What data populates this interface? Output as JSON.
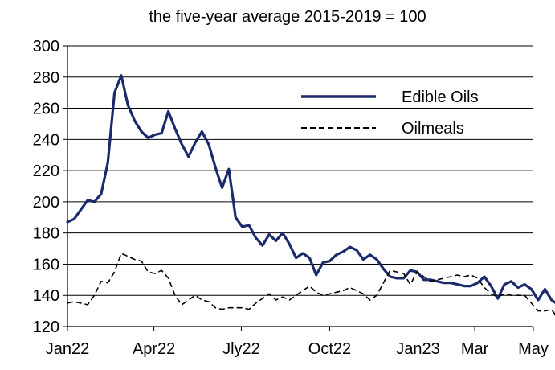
{
  "chart_data": {
    "type": "line",
    "title": "the five-year average 2015-2019 = 100",
    "xlabel": "",
    "ylabel": "",
    "ylim": [
      120,
      300
    ],
    "y_ticks": [
      120,
      140,
      160,
      180,
      200,
      220,
      240,
      260,
      280,
      300
    ],
    "x_range": [
      "2022-01",
      "2023-05"
    ],
    "x_ticks": [
      {
        "label": "Jan22",
        "date": "2022-01"
      },
      {
        "label": "Apr22",
        "date": "2022-04"
      },
      {
        "label": "Jly22",
        "date": "2022-07"
      },
      {
        "label": "Oct22",
        "date": "2022-10"
      },
      {
        "label": "Jan23",
        "date": "2023-01"
      },
      {
        "label": "Mar",
        "date": "2023-03"
      },
      {
        "label": "May",
        "date": "2023-05"
      }
    ],
    "grid": "horizontal",
    "legend_position": "top-right",
    "series": [
      {
        "name": "Edible Oils",
        "color": "#1b2a6b",
        "style": "solid",
        "points": [
          [
            "2022-01-01",
            187
          ],
          [
            "2022-01-08",
            189
          ],
          [
            "2022-01-15",
            195
          ],
          [
            "2022-01-22",
            201
          ],
          [
            "2022-01-29",
            200
          ],
          [
            "2022-02-05",
            205
          ],
          [
            "2022-02-12",
            225
          ],
          [
            "2022-02-19",
            270
          ],
          [
            "2022-02-26",
            281
          ],
          [
            "2022-03-05",
            262
          ],
          [
            "2022-03-12",
            252
          ],
          [
            "2022-03-19",
            245
          ],
          [
            "2022-03-26",
            241
          ],
          [
            "2022-04-02",
            243
          ],
          [
            "2022-04-09",
            244
          ],
          [
            "2022-04-16",
            258
          ],
          [
            "2022-04-23",
            247
          ],
          [
            "2022-04-30",
            237
          ],
          [
            "2022-05-07",
            229
          ],
          [
            "2022-05-14",
            238
          ],
          [
            "2022-05-21",
            245
          ],
          [
            "2022-05-28",
            237
          ],
          [
            "2022-06-04",
            222
          ],
          [
            "2022-06-11",
            209
          ],
          [
            "2022-06-18",
            221
          ],
          [
            "2022-06-25",
            190
          ],
          [
            "2022-07-02",
            184
          ],
          [
            "2022-07-09",
            185
          ],
          [
            "2022-07-16",
            177
          ],
          [
            "2022-07-23",
            172
          ],
          [
            "2022-07-30",
            179
          ],
          [
            "2022-08-06",
            175
          ],
          [
            "2022-08-13",
            180
          ],
          [
            "2022-08-20",
            173
          ],
          [
            "2022-08-27",
            164
          ],
          [
            "2022-09-03",
            167
          ],
          [
            "2022-09-10",
            164
          ],
          [
            "2022-09-17",
            153
          ],
          [
            "2022-09-24",
            161
          ],
          [
            "2022-10-01",
            162
          ],
          [
            "2022-10-08",
            166
          ],
          [
            "2022-10-15",
            168
          ],
          [
            "2022-10-22",
            171
          ],
          [
            "2022-10-29",
            169
          ],
          [
            "2022-11-05",
            163
          ],
          [
            "2022-11-12",
            166
          ],
          [
            "2022-11-19",
            163
          ],
          [
            "2022-11-26",
            157
          ],
          [
            "2022-12-03",
            152
          ],
          [
            "2022-12-10",
            151
          ],
          [
            "2022-12-17",
            151
          ],
          [
            "2022-12-24",
            156
          ],
          [
            "2022-12-31",
            155
          ],
          [
            "2023-01-07",
            150
          ],
          [
            "2023-01-14",
            150
          ],
          [
            "2023-01-21",
            149
          ],
          [
            "2023-01-28",
            148
          ],
          [
            "2023-02-04",
            148
          ],
          [
            "2023-02-11",
            147
          ],
          [
            "2023-02-18",
            146
          ],
          [
            "2023-02-25",
            146
          ],
          [
            "2023-03-04",
            148
          ],
          [
            "2023-03-11",
            152
          ],
          [
            "2023-03-18",
            146
          ],
          [
            "2023-03-25",
            138
          ],
          [
            "2023-04-01",
            147
          ],
          [
            "2023-04-08",
            149
          ],
          [
            "2023-04-15",
            145
          ],
          [
            "2023-04-22",
            147
          ],
          [
            "2023-04-29",
            144
          ],
          [
            "2023-05-06",
            137
          ],
          [
            "2023-05-13",
            144
          ],
          [
            "2023-05-20",
            137
          ],
          [
            "2023-05-27",
            134
          ]
        ]
      },
      {
        "name": "Oilmeals",
        "color": "#000000",
        "style": "dashed",
        "points": [
          [
            "2022-01-01",
            135
          ],
          [
            "2022-01-08",
            136
          ],
          [
            "2022-01-15",
            135
          ],
          [
            "2022-01-22",
            134
          ],
          [
            "2022-01-29",
            140
          ],
          [
            "2022-02-05",
            149
          ],
          [
            "2022-02-12",
            148
          ],
          [
            "2022-02-19",
            155
          ],
          [
            "2022-02-26",
            167
          ],
          [
            "2022-03-05",
            165
          ],
          [
            "2022-03-12",
            163
          ],
          [
            "2022-03-19",
            162
          ],
          [
            "2022-03-26",
            155
          ],
          [
            "2022-04-02",
            154
          ],
          [
            "2022-04-09",
            156
          ],
          [
            "2022-04-16",
            151
          ],
          [
            "2022-04-23",
            140
          ],
          [
            "2022-04-30",
            134
          ],
          [
            "2022-05-07",
            137
          ],
          [
            "2022-05-14",
            140
          ],
          [
            "2022-05-21",
            137
          ],
          [
            "2022-05-28",
            136
          ],
          [
            "2022-06-04",
            132
          ],
          [
            "2022-06-11",
            131
          ],
          [
            "2022-06-18",
            132
          ],
          [
            "2022-06-25",
            132
          ],
          [
            "2022-07-02",
            132
          ],
          [
            "2022-07-09",
            131
          ],
          [
            "2022-07-16",
            135
          ],
          [
            "2022-07-23",
            138
          ],
          [
            "2022-07-30",
            141
          ],
          [
            "2022-08-06",
            137
          ],
          [
            "2022-08-13",
            139
          ],
          [
            "2022-08-20",
            137
          ],
          [
            "2022-08-27",
            140
          ],
          [
            "2022-09-03",
            143
          ],
          [
            "2022-09-10",
            146
          ],
          [
            "2022-09-17",
            142
          ],
          [
            "2022-09-24",
            140
          ],
          [
            "2022-10-01",
            141
          ],
          [
            "2022-10-08",
            142
          ],
          [
            "2022-10-15",
            143
          ],
          [
            "2022-10-22",
            145
          ],
          [
            "2022-10-29",
            143
          ],
          [
            "2022-11-05",
            141
          ],
          [
            "2022-11-12",
            137
          ],
          [
            "2022-11-19",
            140
          ],
          [
            "2022-11-26",
            148
          ],
          [
            "2022-12-03",
            156
          ],
          [
            "2022-12-10",
            155
          ],
          [
            "2022-12-17",
            154
          ],
          [
            "2022-12-24",
            147
          ],
          [
            "2022-12-31",
            155
          ],
          [
            "2023-01-07",
            152
          ],
          [
            "2023-01-14",
            149
          ],
          [
            "2023-01-21",
            150
          ],
          [
            "2023-01-28",
            151
          ],
          [
            "2023-02-04",
            152
          ],
          [
            "2023-02-11",
            153
          ],
          [
            "2023-02-18",
            152
          ],
          [
            "2023-02-25",
            153
          ],
          [
            "2023-03-04",
            151
          ],
          [
            "2023-03-11",
            145
          ],
          [
            "2023-03-18",
            141
          ],
          [
            "2023-03-25",
            139
          ],
          [
            "2023-04-01",
            141
          ],
          [
            "2023-04-08",
            140
          ],
          [
            "2023-04-15",
            140
          ],
          [
            "2023-04-22",
            140
          ],
          [
            "2023-04-29",
            135
          ],
          [
            "2023-05-06",
            130
          ],
          [
            "2023-05-13",
            130
          ],
          [
            "2023-05-20",
            131
          ],
          [
            "2023-05-27",
            125
          ]
        ]
      }
    ]
  }
}
